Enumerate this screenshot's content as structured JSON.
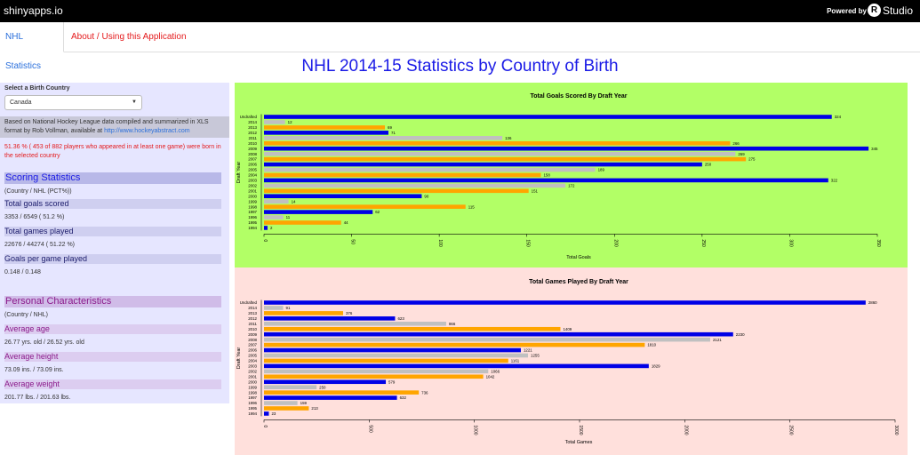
{
  "topbar": {
    "brand": "shinyapps.io",
    "powered_by": "Powered by",
    "logo_letter": "R",
    "logo_text": "Studio"
  },
  "nav": {
    "tabs": [
      {
        "label": "NHL Statistics",
        "active": true
      },
      {
        "label": "About / Using this Application",
        "active": false
      }
    ]
  },
  "page_title": "NHL 2014-15 Statistics by Country of Birth",
  "sidebar": {
    "select_label": "Select a Birth Country",
    "select_value": "Canada",
    "source_prefix": "Based on National Hockey League data compiled and summarized in XLS format by Rob Vollman, available at ",
    "source_link": "http://www.hockeyabstract.com",
    "share_text": "51.36 % ( 453 of 882 players who appeared in at least one game) were born in the selected country",
    "scoring": {
      "title": "Scoring Statistics",
      "subtitle": "(Country / NHL (PCT%))",
      "goals_label": "Total goals scored",
      "goals_value": "3353 / 6549 ( 51.2 %)",
      "games_label": "Total games played",
      "games_value": "22676 / 44274 ( 51.22 %)",
      "gpg_label": "Goals per game played",
      "gpg_value": "0.148 / 0.148"
    },
    "personal": {
      "title": "Personal Characteristics",
      "subtitle": "(Country / NHL)",
      "age_label": "Average age",
      "age_value": "26.77 yrs. old / 26.52 yrs. old",
      "height_label": "Average height",
      "height_value": "73.09 ins. / 73.09 ins.",
      "weight_label": "Average weight",
      "weight_value": "201.77 lbs. / 201.63 lbs."
    }
  },
  "colors": {
    "blue": "#0000e6",
    "gray": "#c0c0c0",
    "orange": "#ffa500",
    "green_bg": "#b2ff66",
    "pink_bg": "#ffe0dc"
  },
  "chart_data": [
    {
      "type": "bar",
      "orientation": "horizontal",
      "title": "Total Goals Scored By Draft Year",
      "xlabel": "Total Goals",
      "ylabel": "Draft Year",
      "xlim": [
        0,
        350
      ],
      "xticks": [
        0,
        50,
        100,
        150,
        200,
        250,
        300,
        350
      ],
      "categories": [
        "Undrafted",
        "2014",
        "2013",
        "2012",
        "2011",
        "2010",
        "2009",
        "2008",
        "2007",
        "2006",
        "2005",
        "2004",
        "2003",
        "2002",
        "2001",
        "2000",
        "1999",
        "1998",
        "1997",
        "1996",
        "1995",
        "1994"
      ],
      "values": [
        324,
        12,
        69,
        71,
        136,
        266,
        345,
        269,
        275,
        250,
        189,
        158,
        322,
        172,
        151,
        90,
        14,
        115,
        62,
        11,
        44,
        2
      ],
      "bar_colors": [
        "blue",
        "gray",
        "orange",
        "blue",
        "gray",
        "orange",
        "blue",
        "gray",
        "orange",
        "blue",
        "gray",
        "orange",
        "blue",
        "gray",
        "orange",
        "blue",
        "gray",
        "orange",
        "blue",
        "gray",
        "orange",
        "blue"
      ]
    },
    {
      "type": "bar",
      "orientation": "horizontal",
      "title": "Total Games Played By Draft Year",
      "xlabel": "Total Games",
      "ylabel": "Draft Year",
      "xlim": [
        0,
        3000
      ],
      "xticks": [
        0,
        500,
        1000,
        1500,
        2000,
        2500,
        3000
      ],
      "categories": [
        "Undrafted",
        "2014",
        "2013",
        "2012",
        "2011",
        "2010",
        "2009",
        "2008",
        "2007",
        "2006",
        "2005",
        "2004",
        "2003",
        "2002",
        "2001",
        "2000",
        "1999",
        "1998",
        "1997",
        "1996",
        "1995",
        "1994"
      ],
      "values": [
        2860,
        91,
        376,
        623,
        866,
        1409,
        2230,
        2121,
        1810,
        1221,
        1255,
        1161,
        1829,
        1066,
        1042,
        579,
        250,
        736,
        632,
        159,
        213,
        23
      ],
      "bar_colors": [
        "blue",
        "gray",
        "orange",
        "blue",
        "gray",
        "orange",
        "blue",
        "gray",
        "orange",
        "blue",
        "gray",
        "orange",
        "blue",
        "gray",
        "orange",
        "blue",
        "gray",
        "orange",
        "blue",
        "gray",
        "orange",
        "blue"
      ]
    }
  ]
}
